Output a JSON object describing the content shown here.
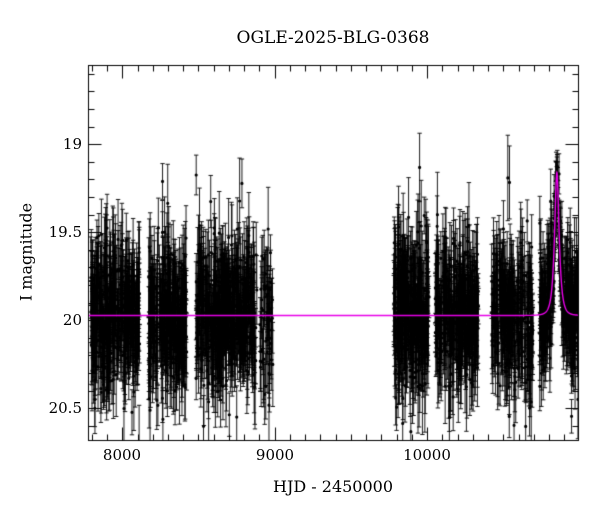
{
  "chart_data": {
    "type": "scatter",
    "title": "OGLE-2025-BLG-0368",
    "xlabel": "HJD - 2450000",
    "ylabel": "I magnitude",
    "xlim": [
      7775,
      10990
    ],
    "ylim": [
      20.68,
      18.55
    ],
    "y_axis_inverted": true,
    "grid": false,
    "xticks": [
      8000,
      9000,
      10000
    ],
    "xtick_labels": [
      "8000",
      "9000",
      "10000"
    ],
    "x_minor_step": 100,
    "yticks": [
      19,
      19.5,
      20,
      20.5
    ],
    "ytick_labels": [
      "19",
      "19.5",
      "20",
      "20.5"
    ],
    "y_minor_step": 0.1,
    "point_color": "#000000",
    "model_color": "#e800e8",
    "baseline_mag": 19.97,
    "seasons": [
      {
        "x_start": 7790,
        "x_end": 8110,
        "n": 380,
        "sigma": 0.2,
        "err_min": 0.1,
        "err_max": 0.26
      },
      {
        "x_start": 8170,
        "x_end": 8420,
        "n": 300,
        "sigma": 0.19,
        "err_min": 0.1,
        "err_max": 0.26
      },
      {
        "x_start": 8480,
        "x_end": 8880,
        "n": 460,
        "sigma": 0.2,
        "err_min": 0.1,
        "err_max": 0.26
      },
      {
        "x_start": 8900,
        "x_end": 8985,
        "n": 55,
        "sigma": 0.2,
        "err_min": 0.1,
        "err_max": 0.26
      },
      {
        "x_start": 9778,
        "x_end": 10010,
        "n": 300,
        "sigma": 0.21,
        "err_min": 0.1,
        "err_max": 0.28
      },
      {
        "x_start": 10050,
        "x_end": 10335,
        "n": 340,
        "sigma": 0.2,
        "err_min": 0.1,
        "err_max": 0.26
      },
      {
        "x_start": 10420,
        "x_end": 10690,
        "n": 280,
        "sigma": 0.19,
        "err_min": 0.1,
        "err_max": 0.26
      },
      {
        "x_start": 10735,
        "x_end": 10988,
        "n": 330,
        "sigma": 0.17,
        "err_min": 0.09,
        "err_max": 0.24
      }
    ],
    "model": {
      "type": "paczynski",
      "t0": 10848,
      "tE": 25,
      "u0": 0.52,
      "baseline_mag": 19.97,
      "peak_mag": 19.16
    }
  }
}
